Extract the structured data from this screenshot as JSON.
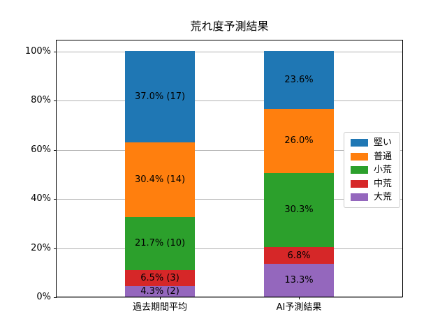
{
  "chart_data": {
    "type": "bar",
    "stacked": true,
    "stack_order": "bottom-to-top",
    "title": "荒れ度予測結果",
    "categories": [
      "過去期間平均",
      "AI予測結果"
    ],
    "series": [
      {
        "name": "大荒",
        "color": "#9467bd",
        "values": [
          4.3,
          13.3
        ],
        "counts": [
          2,
          null
        ],
        "labels": [
          "4.3% (2)",
          "13.3%"
        ]
      },
      {
        "name": "中荒",
        "color": "#d62728",
        "values": [
          6.5,
          6.8
        ],
        "counts": [
          3,
          null
        ],
        "labels": [
          "6.5% (3)",
          "6.8%"
        ]
      },
      {
        "name": "小荒",
        "color": "#2ca02c",
        "values": [
          21.7,
          30.3
        ],
        "counts": [
          10,
          null
        ],
        "labels": [
          "21.7% (10)",
          "30.3%"
        ]
      },
      {
        "name": "普通",
        "color": "#ff7f0e",
        "values": [
          30.4,
          26.0
        ],
        "counts": [
          14,
          null
        ],
        "labels": [
          "30.4% (14)",
          "26.0%"
        ]
      },
      {
        "name": "堅い",
        "color": "#1f77b4",
        "values": [
          37.0,
          23.6
        ],
        "counts": [
          17,
          null
        ],
        "labels": [
          "37.0% (17)",
          "23.6%"
        ]
      }
    ],
    "y_axis": {
      "ticks": [
        {
          "value": 0,
          "label": "0%"
        },
        {
          "value": 20,
          "label": "20%"
        },
        {
          "value": 40,
          "label": "40%"
        },
        {
          "value": 60,
          "label": "60%"
        },
        {
          "value": 80,
          "label": "80%"
        },
        {
          "value": 100,
          "label": "100%"
        }
      ],
      "ylim": [
        0,
        104.8
      ]
    },
    "grid": true,
    "legend": {
      "position": "center right",
      "entries": [
        {
          "label": "堅い",
          "color": "#1f77b4"
        },
        {
          "label": "普通",
          "color": "#ff7f0e"
        },
        {
          "label": "小荒",
          "color": "#2ca02c"
        },
        {
          "label": "中荒",
          "color": "#d62728"
        },
        {
          "label": "大荒",
          "color": "#9467bd"
        }
      ]
    },
    "colors": {
      "grid": "#b0b0b0",
      "spine": "#000000",
      "background": "#ffffff"
    }
  }
}
